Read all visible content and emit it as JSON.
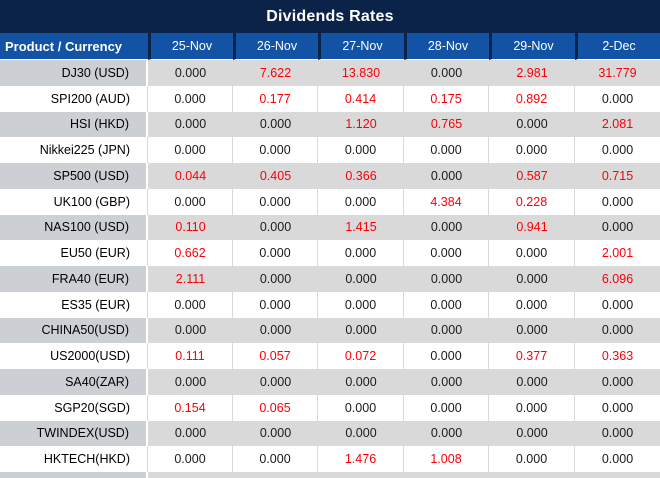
{
  "title": "Dividends Rates",
  "table": {
    "product_header": "Product / Currency",
    "date_headers": [
      "25-Nov",
      "26-Nov",
      "27-Nov",
      "28-Nov",
      "29-Nov",
      "2-Dec"
    ],
    "rows": [
      {
        "product": "DJ30 (USD)",
        "values": [
          "0.000",
          "7.622",
          "13.830",
          "0.000",
          "2.981",
          "31.779"
        ]
      },
      {
        "product": "SPI200 (AUD)",
        "values": [
          "0.000",
          "0.177",
          "0.414",
          "0.175",
          "0.892",
          "0.000"
        ]
      },
      {
        "product": "HSI (HKD)",
        "values": [
          "0.000",
          "0.000",
          "1.120",
          "0.765",
          "0.000",
          "2.081"
        ]
      },
      {
        "product": "Nikkei225 (JPN)",
        "values": [
          "0.000",
          "0.000",
          "0.000",
          "0.000",
          "0.000",
          "0.000"
        ]
      },
      {
        "product": "SP500 (USD)",
        "values": [
          "0.044",
          "0.405",
          "0.366",
          "0.000",
          "0.587",
          "0.715"
        ]
      },
      {
        "product": "UK100 (GBP)",
        "values": [
          "0.000",
          "0.000",
          "0.000",
          "4.384",
          "0.228",
          "0.000"
        ]
      },
      {
        "product": "NAS100 (USD)",
        "values": [
          "0.110",
          "0.000",
          "1.415",
          "0.000",
          "0.941",
          "0.000"
        ]
      },
      {
        "product": "EU50 (EUR)",
        "values": [
          "0.662",
          "0.000",
          "0.000",
          "0.000",
          "0.000",
          "2.001"
        ]
      },
      {
        "product": "FRA40 (EUR)",
        "values": [
          "2.111",
          "0.000",
          "0.000",
          "0.000",
          "0.000",
          "6.096"
        ]
      },
      {
        "product": "ES35 (EUR)",
        "values": [
          "0.000",
          "0.000",
          "0.000",
          "0.000",
          "0.000",
          "0.000"
        ]
      },
      {
        "product": "CHINA50(USD)",
        "values": [
          "0.000",
          "0.000",
          "0.000",
          "0.000",
          "0.000",
          "0.000"
        ]
      },
      {
        "product": "US2000(USD)",
        "values": [
          "0.111",
          "0.057",
          "0.072",
          "0.000",
          "0.377",
          "0.363"
        ]
      },
      {
        "product": "SA40(ZAR)",
        "values": [
          "0.000",
          "0.000",
          "0.000",
          "0.000",
          "0.000",
          "0.000"
        ]
      },
      {
        "product": "SGP20(SGD)",
        "values": [
          "0.154",
          "0.065",
          "0.000",
          "0.000",
          "0.000",
          "0.000"
        ]
      },
      {
        "product": "TWINDEX(USD)",
        "values": [
          "0.000",
          "0.000",
          "0.000",
          "0.000",
          "0.000",
          "0.000"
        ]
      },
      {
        "product": "HKTECH(HKD)",
        "values": [
          "0.000",
          "0.000",
          "1.476",
          "1.008",
          "0.000",
          "0.000"
        ]
      }
    ]
  },
  "palette": {
    "title_bg": "#0b2349",
    "header_bg": "#1353a5",
    "header_text": "#ffffff",
    "row_gray": "#d9d9d9",
    "product_gray": "#ccd0d4",
    "value_zero": "#1a1a1a",
    "value_positive": "#fb0007"
  }
}
